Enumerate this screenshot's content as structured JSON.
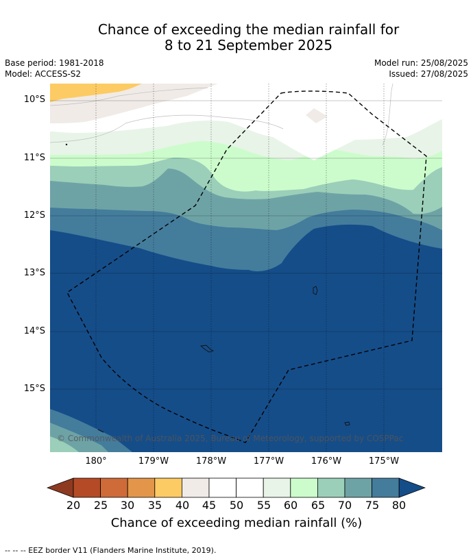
{
  "title_line1": "Chance of exceeding the median rainfall for",
  "title_line2": "8 to 21 September 2025",
  "base_period": "Base period: 1981-2018",
  "model": "Model: ACCESS-S2",
  "model_run": "Model run: 25/08/2025",
  "issued": "Issued: 27/08/2025",
  "lat_labels": [
    "10°S",
    "11°S",
    "12°S",
    "13°S",
    "14°S",
    "15°S"
  ],
  "lon_labels": [
    "180°",
    "179°W",
    "178°W",
    "177°W",
    "176°W",
    "175°W"
  ],
  "copyright": "© Commonwealth of Australia 2025, Bureau of Meteorology, supported by COSPPac",
  "colorbar": {
    "ticks": [
      "20",
      "25",
      "30",
      "35",
      "40",
      "45",
      "50",
      "55",
      "60",
      "65",
      "70",
      "75",
      "80"
    ],
    "label": "Chance of exceeding median rainfall (%)",
    "colors": {
      "below20": "#8e3a21",
      "b20_25": "#b54b26",
      "b25_30": "#cf6a39",
      "b30_35": "#e3964a",
      "b35_40": "#fdcb64",
      "b40_45": "#f0ebe7",
      "b45_50": "#ffffff",
      "b50_55": "#ffffff",
      "b55_60": "#e8f4e8",
      "b60_65": "#ccfccc",
      "b65_70": "#9bcfb9",
      "b70_75": "#6ea3a6",
      "b75_80": "#447c9c",
      "above80": "#154d89"
    }
  },
  "footnote": "--  --  -- EEZ border V11 (Flanders Marine Institute, 2019)."
}
